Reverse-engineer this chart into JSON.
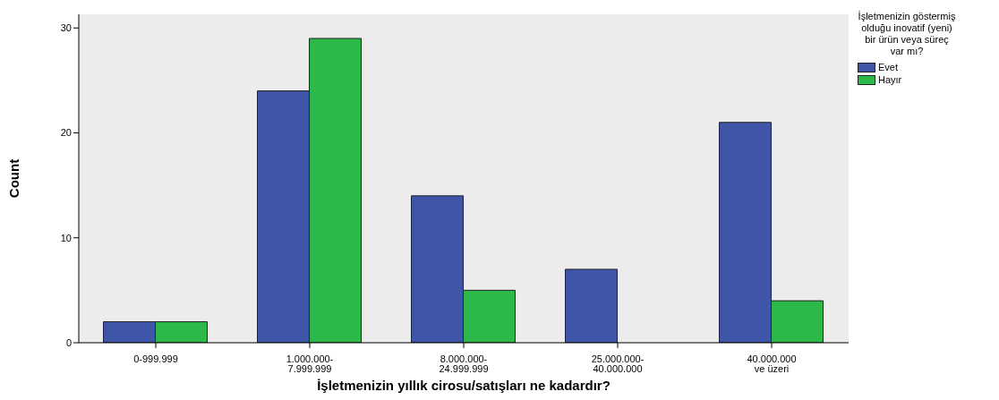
{
  "chart_data": {
    "type": "bar",
    "xlabel": "İşletmenizin yıllık cirosu/satışları ne kadardır?",
    "ylabel": "Count",
    "legend_title": "İşletmenizin göstermiş olduğu inovatif (yeni) bir ürün veya süreç var mı?",
    "legend": "right",
    "categories": [
      "0-999.999",
      "1.000.000-7.999.999",
      "8.000.000-24.999.999",
      "25.000.000-40.000.000",
      "40.000.000 ve üzeri"
    ],
    "series": [
      {
        "name": "Evet",
        "color": "#3f56a8",
        "values": [
          2,
          24,
          14,
          7,
          21
        ]
      },
      {
        "name": "Hayır",
        "color": "#2db84a",
        "values": [
          2,
          29,
          5,
          null,
          4
        ]
      }
    ],
    "ylim": [
      0,
      31.3
    ],
    "yticks": [
      0,
      10,
      20,
      30
    ]
  }
}
